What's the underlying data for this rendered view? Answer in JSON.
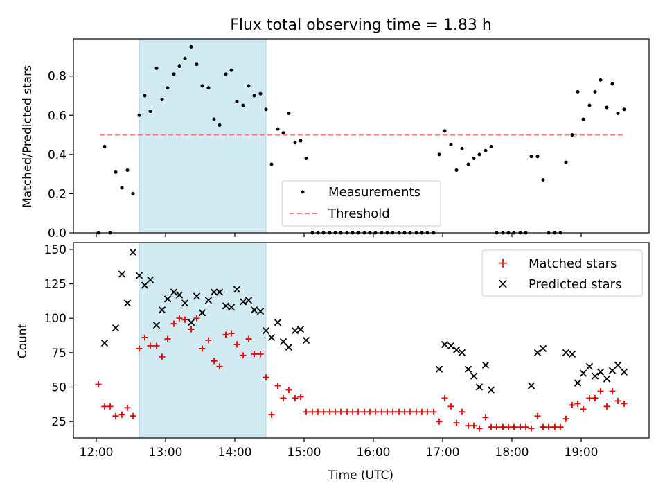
{
  "title": "Flux total observing time = 1.83 h",
  "colors": {
    "measurements": "#000000",
    "threshold": "#ff7f7f",
    "matched": "#e60000",
    "predicted": "#000000",
    "shade": "#add8e6"
  },
  "chart_data": [
    {
      "type": "scatter",
      "ylabel": "Matched/Predicted stars",
      "xlim": [
        11.67,
        19.98
      ],
      "ylim": [
        0,
        0.99
      ],
      "xticks": [
        12,
        13,
        14,
        15,
        16,
        17,
        18,
        19
      ],
      "yticks": [
        0.0,
        0.2,
        0.4,
        0.6,
        0.8
      ],
      "ytick_labels": [
        "0.0",
        "0.2",
        "0.4",
        "0.6",
        "0.8"
      ],
      "shaded_interval": [
        12.62,
        14.45
      ],
      "legend": {
        "position": "lower center",
        "measurements_label": "Measurements",
        "threshold_label": "Threshold"
      },
      "threshold": 0.5,
      "threshold_x": [
        12.05,
        19.63
      ],
      "series": [
        {
          "name": "Measurements",
          "points": [
            [
              12.03,
              0.0
            ],
            [
              12.12,
              0.44
            ],
            [
              12.2,
              0.0
            ],
            [
              12.28,
              0.31
            ],
            [
              12.37,
              0.23
            ],
            [
              12.45,
              0.32
            ],
            [
              12.53,
              0.2
            ],
            [
              12.62,
              0.6
            ],
            [
              12.7,
              0.7
            ],
            [
              12.78,
              0.62
            ],
            [
              12.87,
              0.84
            ],
            [
              12.95,
              0.68
            ],
            [
              13.03,
              0.74
            ],
            [
              13.12,
              0.81
            ],
            [
              13.2,
              0.85
            ],
            [
              13.28,
              0.89
            ],
            [
              13.37,
              0.95
            ],
            [
              13.45,
              0.86
            ],
            [
              13.53,
              0.75
            ],
            [
              13.62,
              0.74
            ],
            [
              13.7,
              0.58
            ],
            [
              13.78,
              0.55
            ],
            [
              13.87,
              0.81
            ],
            [
              13.95,
              0.83
            ],
            [
              14.03,
              0.67
            ],
            [
              14.12,
              0.65
            ],
            [
              14.2,
              0.75
            ],
            [
              14.28,
              0.7
            ],
            [
              14.37,
              0.71
            ],
            [
              14.45,
              0.63
            ],
            [
              14.53,
              0.35
            ],
            [
              14.62,
              0.53
            ],
            [
              14.7,
              0.51
            ],
            [
              14.78,
              0.61
            ],
            [
              14.87,
              0.46
            ],
            [
              14.95,
              0.47
            ],
            [
              15.03,
              0.38
            ],
            [
              15.12,
              0.0
            ],
            [
              15.2,
              0.0
            ],
            [
              15.28,
              0.0
            ],
            [
              15.37,
              0.0
            ],
            [
              15.45,
              0.0
            ],
            [
              15.53,
              0.0
            ],
            [
              15.62,
              0.0
            ],
            [
              15.7,
              0.0
            ],
            [
              15.78,
              0.0
            ],
            [
              15.87,
              0.0
            ],
            [
              15.95,
              0.0
            ],
            [
              16.03,
              0.0
            ],
            [
              16.12,
              0.0
            ],
            [
              16.2,
              0.0
            ],
            [
              16.28,
              0.0
            ],
            [
              16.37,
              0.0
            ],
            [
              16.45,
              0.0
            ],
            [
              16.53,
              0.0
            ],
            [
              16.62,
              0.0
            ],
            [
              16.7,
              0.0
            ],
            [
              16.78,
              0.0
            ],
            [
              16.87,
              0.0
            ],
            [
              16.95,
              0.4
            ],
            [
              17.03,
              0.52
            ],
            [
              17.12,
              0.45
            ],
            [
              17.2,
              0.32
            ],
            [
              17.28,
              0.43
            ],
            [
              17.37,
              0.35
            ],
            [
              17.45,
              0.38
            ],
            [
              17.53,
              0.4
            ],
            [
              17.62,
              0.42
            ],
            [
              17.7,
              0.44
            ],
            [
              17.78,
              0.0
            ],
            [
              17.87,
              0.0
            ],
            [
              17.95,
              0.0
            ],
            [
              18.03,
              0.0
            ],
            [
              18.12,
              0.0
            ],
            [
              18.2,
              0.0
            ],
            [
              18.28,
              0.39
            ],
            [
              18.37,
              0.39
            ],
            [
              18.45,
              0.27
            ],
            [
              18.53,
              0.0
            ],
            [
              18.62,
              0.0
            ],
            [
              18.7,
              0.0
            ],
            [
              18.78,
              0.36
            ],
            [
              18.87,
              0.5
            ],
            [
              18.95,
              0.72
            ],
            [
              19.03,
              0.58
            ],
            [
              19.12,
              0.65
            ],
            [
              19.2,
              0.72
            ],
            [
              19.28,
              0.78
            ],
            [
              19.37,
              0.64
            ],
            [
              19.45,
              0.76
            ],
            [
              19.53,
              0.61
            ],
            [
              19.62,
              0.63
            ]
          ]
        },
        {
          "name": "Threshold",
          "values": [
            0.5,
            0.5
          ]
        }
      ]
    },
    {
      "type": "scatter",
      "xlabel": "Time (UTC)",
      "ylabel": "Count",
      "xlim": [
        11.67,
        19.98
      ],
      "ylim": [
        13,
        155
      ],
      "xticks": [
        12,
        13,
        14,
        15,
        16,
        17,
        18,
        19
      ],
      "xtick_labels": [
        "12:00",
        "13:00",
        "14:00",
        "15:00",
        "16:00",
        "17:00",
        "18:00",
        "19:00"
      ],
      "yticks": [
        25,
        50,
        75,
        100,
        125,
        150
      ],
      "ytick_labels": [
        "25",
        "50",
        "75",
        "100",
        "125",
        "150"
      ],
      "shaded_interval": [
        12.62,
        14.45
      ],
      "legend": {
        "position": "upper right",
        "matched_label": "Matched stars",
        "predicted_label": "Predicted stars"
      },
      "series": [
        {
          "name": "Matched stars",
          "points": [
            [
              12.03,
              52
            ],
            [
              12.12,
              36
            ],
            [
              12.2,
              36
            ],
            [
              12.28,
              29
            ],
            [
              12.37,
              30
            ],
            [
              12.45,
              35
            ],
            [
              12.53,
              29
            ],
            [
              12.62,
              78
            ],
            [
              12.7,
              86
            ],
            [
              12.78,
              80
            ],
            [
              12.87,
              80
            ],
            [
              12.95,
              72
            ],
            [
              13.03,
              85
            ],
            [
              13.12,
              96
            ],
            [
              13.2,
              100
            ],
            [
              13.28,
              99
            ],
            [
              13.37,
              92
            ],
            [
              13.45,
              100
            ],
            [
              13.53,
              78
            ],
            [
              13.62,
              84
            ],
            [
              13.7,
              69
            ],
            [
              13.78,
              65
            ],
            [
              13.87,
              88
            ],
            [
              13.95,
              89
            ],
            [
              14.03,
              81
            ],
            [
              14.12,
              73
            ],
            [
              14.2,
              85
            ],
            [
              14.28,
              74
            ],
            [
              14.37,
              74
            ],
            [
              14.45,
              57
            ],
            [
              14.53,
              30
            ],
            [
              14.62,
              51
            ],
            [
              14.7,
              42
            ],
            [
              14.78,
              48
            ],
            [
              14.87,
              42
            ],
            [
              14.95,
              43
            ],
            [
              15.03,
              32
            ],
            [
              15.12,
              32
            ],
            [
              15.2,
              32
            ],
            [
              15.28,
              32
            ],
            [
              15.37,
              32
            ],
            [
              15.45,
              32
            ],
            [
              15.53,
              32
            ],
            [
              15.62,
              32
            ],
            [
              15.7,
              32
            ],
            [
              15.78,
              32
            ],
            [
              15.87,
              32
            ],
            [
              15.95,
              32
            ],
            [
              16.03,
              32
            ],
            [
              16.12,
              32
            ],
            [
              16.2,
              32
            ],
            [
              16.28,
              32
            ],
            [
              16.37,
              32
            ],
            [
              16.45,
              32
            ],
            [
              16.53,
              32
            ],
            [
              16.62,
              32
            ],
            [
              16.7,
              32
            ],
            [
              16.78,
              32
            ],
            [
              16.87,
              32
            ],
            [
              16.95,
              25
            ],
            [
              17.03,
              42
            ],
            [
              17.12,
              36
            ],
            [
              17.2,
              24
            ],
            [
              17.28,
              32
            ],
            [
              17.37,
              22
            ],
            [
              17.45,
              22
            ],
            [
              17.53,
              20
            ],
            [
              17.62,
              28
            ],
            [
              17.7,
              21
            ],
            [
              17.78,
              21
            ],
            [
              17.87,
              21
            ],
            [
              17.95,
              21
            ],
            [
              18.03,
              21
            ],
            [
              18.12,
              21
            ],
            [
              18.2,
              21
            ],
            [
              18.28,
              20
            ],
            [
              18.37,
              29
            ],
            [
              18.45,
              21
            ],
            [
              18.53,
              21
            ],
            [
              18.62,
              21
            ],
            [
              18.7,
              21
            ],
            [
              18.78,
              27
            ],
            [
              18.87,
              37
            ],
            [
              18.95,
              38
            ],
            [
              19.03,
              34
            ],
            [
              19.12,
              42
            ],
            [
              19.2,
              42
            ],
            [
              19.28,
              47
            ],
            [
              19.37,
              36
            ],
            [
              19.45,
              47
            ],
            [
              19.53,
              40
            ],
            [
              19.62,
              38
            ]
          ]
        },
        {
          "name": "Predicted stars",
          "points": [
            [
              12.12,
              82
            ],
            [
              12.28,
              93
            ],
            [
              12.37,
              132
            ],
            [
              12.45,
              111
            ],
            [
              12.53,
              148
            ],
            [
              12.62,
              131
            ],
            [
              12.7,
              124
            ],
            [
              12.78,
              128
            ],
            [
              12.87,
              95
            ],
            [
              12.95,
              106
            ],
            [
              13.03,
              114
            ],
            [
              13.12,
              119
            ],
            [
              13.2,
              117
            ],
            [
              13.28,
              111
            ],
            [
              13.37,
              97
            ],
            [
              13.45,
              116
            ],
            [
              13.53,
              104
            ],
            [
              13.62,
              113
            ],
            [
              13.7,
              119
            ],
            [
              13.78,
              119
            ],
            [
              13.87,
              109
            ],
            [
              13.95,
              108
            ],
            [
              14.03,
              121
            ],
            [
              14.12,
              112
            ],
            [
              14.2,
              113
            ],
            [
              14.28,
              106
            ],
            [
              14.37,
              105
            ],
            [
              14.45,
              91
            ],
            [
              14.53,
              86
            ],
            [
              14.62,
              97
            ],
            [
              14.7,
              83
            ],
            [
              14.78,
              79
            ],
            [
              14.87,
              91
            ],
            [
              14.95,
              92
            ],
            [
              15.03,
              84
            ],
            [
              16.95,
              63
            ],
            [
              17.03,
              81
            ],
            [
              17.12,
              80
            ],
            [
              17.2,
              77
            ],
            [
              17.28,
              75
            ],
            [
              17.37,
              63
            ],
            [
              17.45,
              58
            ],
            [
              17.53,
              50
            ],
            [
              17.62,
              66
            ],
            [
              17.7,
              48
            ],
            [
              18.28,
              51
            ],
            [
              18.37,
              75
            ],
            [
              18.45,
              78
            ],
            [
              18.78,
              75
            ],
            [
              18.87,
              74
            ],
            [
              18.95,
              53
            ],
            [
              19.03,
              60
            ],
            [
              19.12,
              65
            ],
            [
              19.2,
              58
            ],
            [
              19.28,
              61
            ],
            [
              19.37,
              56
            ],
            [
              19.45,
              62
            ],
            [
              19.53,
              66
            ],
            [
              19.62,
              61
            ]
          ]
        }
      ]
    }
  ]
}
